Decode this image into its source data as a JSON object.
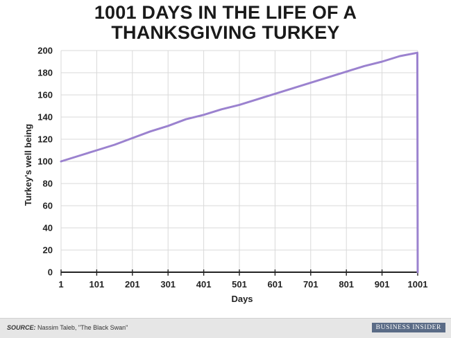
{
  "chart_data": {
    "type": "line",
    "title": [
      "1001 DAYS IN THE LIFE OF A",
      "THANKSGIVING TURKEY"
    ],
    "xlabel": "Days",
    "ylabel": "Turkey's well being",
    "xlim": [
      1,
      1001
    ],
    "ylim": [
      0,
      200
    ],
    "xticks": [
      1,
      101,
      201,
      301,
      401,
      501,
      601,
      701,
      801,
      901,
      1001
    ],
    "yticks": [
      0,
      20,
      40,
      60,
      80,
      100,
      120,
      140,
      160,
      180,
      200
    ],
    "grid": true,
    "series": [
      {
        "color": "#9b82cf",
        "x": [
          1,
          51,
          101,
          151,
          201,
          251,
          301,
          351,
          401,
          451,
          501,
          551,
          601,
          651,
          701,
          751,
          801,
          851,
          901,
          951,
          1000,
          1001
        ],
        "y": [
          100,
          105,
          110,
          115,
          121,
          127,
          132,
          138,
          142,
          147,
          151,
          156,
          161,
          166,
          171,
          176,
          181,
          186,
          190,
          195,
          198,
          0
        ]
      }
    ]
  },
  "footer": {
    "source_label": "SOURCE:",
    "source_text": " Nassim Taleb, \"The Black Swan\"",
    "brand": "BUSINESS INSIDER"
  }
}
